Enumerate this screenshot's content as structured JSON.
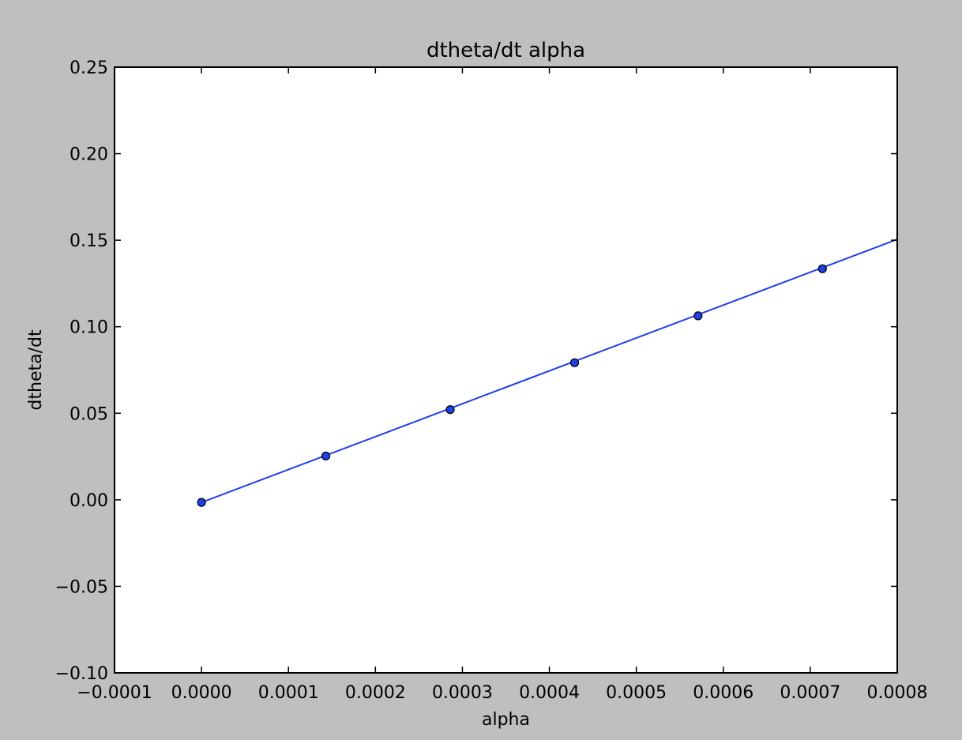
{
  "chart_data": {
    "type": "line",
    "title": "dtheta/dt alpha",
    "xlabel": "alpha",
    "ylabel": "dtheta/dt",
    "xlim": [
      -0.0001,
      0.0008
    ],
    "ylim": [
      -0.1,
      0.25
    ],
    "xticks": [
      -0.0001,
      0.0,
      0.0001,
      0.0002,
      0.0003,
      0.0004,
      0.0005,
      0.0006,
      0.0007,
      0.0008
    ],
    "xtick_labels": [
      "−0.0001",
      "0.0000",
      "0.0001",
      "0.0002",
      "0.0003",
      "0.0004",
      "0.0005",
      "0.0006",
      "0.0007",
      "0.0008"
    ],
    "yticks": [
      -0.1,
      -0.05,
      0.0,
      0.05,
      0.1,
      0.15,
      0.2,
      0.25
    ],
    "ytick_labels": [
      "−0.10",
      "−0.05",
      "0.00",
      "0.05",
      "0.10",
      "0.15",
      "0.20",
      "0.25"
    ],
    "grid": false,
    "series": [
      {
        "kind": "points",
        "color": "#1f3fe8",
        "marker": "circle",
        "x": [
          0.0,
          0.000143,
          0.000286,
          0.000429,
          0.000571,
          0.000714
        ],
        "y": [
          -0.0015,
          0.0253,
          0.0521,
          0.0792,
          0.1063,
          0.1335
        ]
      },
      {
        "kind": "fit-line",
        "color": "#1f3fe8",
        "x": [
          0.0,
          0.0008
        ],
        "y": [
          -0.0015,
          0.1505
        ]
      }
    ]
  }
}
